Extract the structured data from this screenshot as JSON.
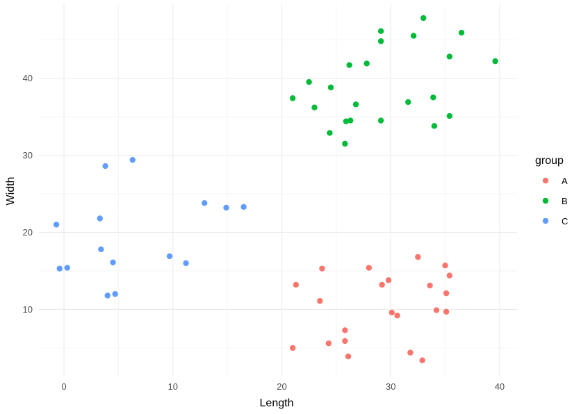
{
  "chart_data": {
    "type": "scatter",
    "xlabel": "Length",
    "ylabel": "Width",
    "xlim": [
      -2.3,
      41.6
    ],
    "ylim": [
      1.3,
      49.6
    ],
    "xticks": [
      0,
      10,
      20,
      30,
      40
    ],
    "yticks": [
      10,
      20,
      30,
      40
    ],
    "grid": true,
    "legend": {
      "title": "group",
      "position": "right"
    },
    "series": [
      {
        "name": "A",
        "color": "#F8766D",
        "points": [
          {
            "x": 21.0,
            "y": 5.0
          },
          {
            "x": 21.3,
            "y": 13.2
          },
          {
            "x": 23.5,
            "y": 11.1
          },
          {
            "x": 23.7,
            "y": 15.3
          },
          {
            "x": 24.3,
            "y": 5.6
          },
          {
            "x": 25.8,
            "y": 7.3
          },
          {
            "x": 25.8,
            "y": 5.9
          },
          {
            "x": 26.1,
            "y": 3.9
          },
          {
            "x": 28.0,
            "y": 15.4
          },
          {
            "x": 29.2,
            "y": 13.2
          },
          {
            "x": 29.8,
            "y": 13.8
          },
          {
            "x": 30.1,
            "y": 9.6
          },
          {
            "x": 30.6,
            "y": 9.2
          },
          {
            "x": 31.8,
            "y": 4.4
          },
          {
            "x": 32.5,
            "y": 16.8
          },
          {
            "x": 32.9,
            "y": 3.4
          },
          {
            "x": 33.6,
            "y": 13.1
          },
          {
            "x": 34.2,
            "y": 9.9
          },
          {
            "x": 35.0,
            "y": 15.7
          },
          {
            "x": 35.1,
            "y": 12.1
          },
          {
            "x": 35.1,
            "y": 9.7
          },
          {
            "x": 35.4,
            "y": 14.4
          }
        ]
      },
      {
        "name": "B",
        "color": "#00BA38",
        "points": [
          {
            "x": 21.0,
            "y": 37.4
          },
          {
            "x": 22.5,
            "y": 39.5
          },
          {
            "x": 23.0,
            "y": 36.2
          },
          {
            "x": 24.4,
            "y": 32.9
          },
          {
            "x": 24.5,
            "y": 38.8
          },
          {
            "x": 25.8,
            "y": 31.5
          },
          {
            "x": 25.9,
            "y": 34.4
          },
          {
            "x": 26.2,
            "y": 41.7
          },
          {
            "x": 26.3,
            "y": 34.5
          },
          {
            "x": 26.8,
            "y": 36.6
          },
          {
            "x": 27.8,
            "y": 41.9
          },
          {
            "x": 29.1,
            "y": 46.1
          },
          {
            "x": 29.1,
            "y": 44.8
          },
          {
            "x": 29.1,
            "y": 34.5
          },
          {
            "x": 31.6,
            "y": 36.9
          },
          {
            "x": 32.1,
            "y": 45.5
          },
          {
            "x": 33.0,
            "y": 47.8
          },
          {
            "x": 33.9,
            "y": 37.5
          },
          {
            "x": 34.0,
            "y": 33.8
          },
          {
            "x": 35.4,
            "y": 42.8
          },
          {
            "x": 35.4,
            "y": 35.1
          },
          {
            "x": 36.5,
            "y": 45.9
          },
          {
            "x": 39.6,
            "y": 42.2
          }
        ]
      },
      {
        "name": "C",
        "color": "#619CFF",
        "points": [
          {
            "x": -0.7,
            "y": 21.0
          },
          {
            "x": -0.4,
            "y": 15.3
          },
          {
            "x": 0.3,
            "y": 15.4
          },
          {
            "x": 3.3,
            "y": 21.8
          },
          {
            "x": 3.4,
            "y": 17.8
          },
          {
            "x": 3.8,
            "y": 28.6
          },
          {
            "x": 4.0,
            "y": 11.8
          },
          {
            "x": 4.5,
            "y": 16.1
          },
          {
            "x": 4.7,
            "y": 12.0
          },
          {
            "x": 6.3,
            "y": 29.4
          },
          {
            "x": 9.7,
            "y": 16.9
          },
          {
            "x": 11.2,
            "y": 16.0
          },
          {
            "x": 12.9,
            "y": 23.8
          },
          {
            "x": 14.9,
            "y": 23.2
          },
          {
            "x": 16.5,
            "y": 23.3
          }
        ]
      }
    ]
  }
}
